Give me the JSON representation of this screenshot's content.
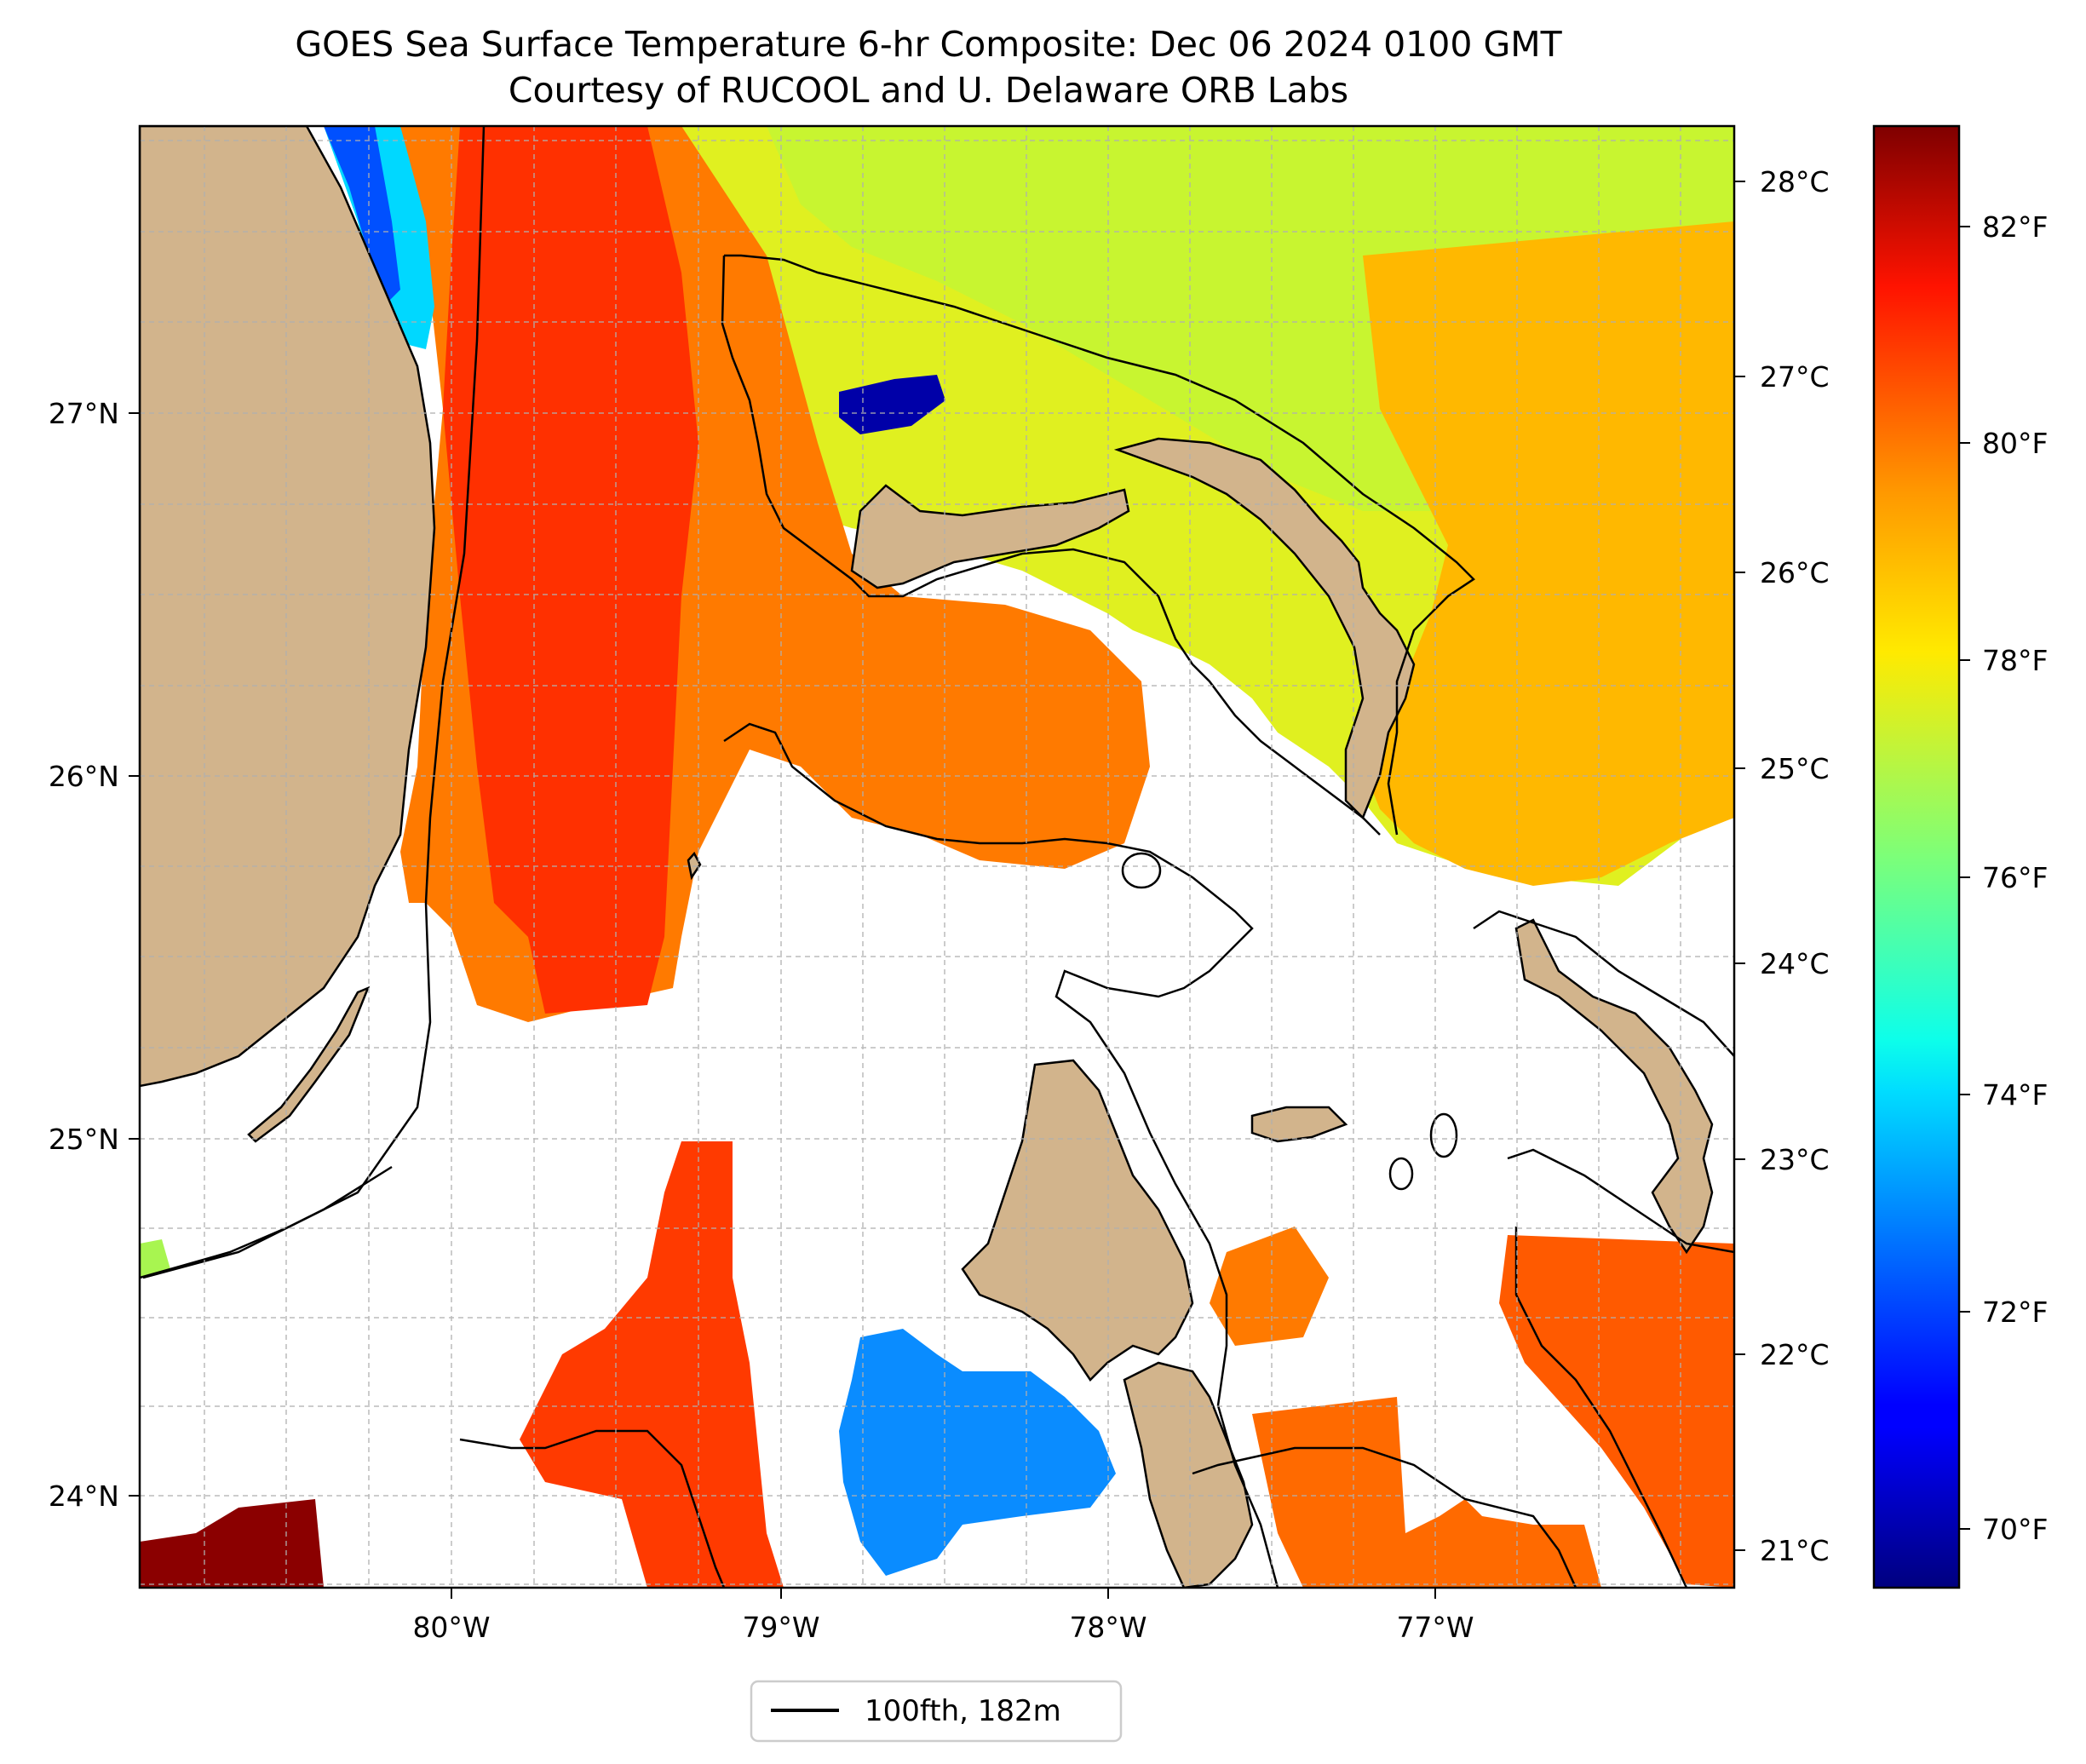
{
  "title": {
    "line1": "GOES Sea Surface Temperature 6-hr Composite: Dec 06 2024 0100 GMT",
    "line2": "Courtesy of RUCOOL and U. Delaware ORB Labs"
  },
  "map": {
    "lon_range": [
      -80.96,
      -76.1
    ],
    "lat_range": [
      23.75,
      27.8
    ],
    "x_ticks": [
      "80°W",
      "79°W",
      "78°W",
      "77°W"
    ],
    "y_ticks": [
      "27°N",
      "26°N",
      "25°N",
      "24°N"
    ],
    "gridlines": true,
    "land_color": "#d2b48c",
    "no_data_color": "#ffffff",
    "isobath_color": "#000000"
  },
  "colorbar": {
    "colormap": "jet",
    "celsius_ticks": [
      "28°C",
      "27°C",
      "26°C",
      "25°C",
      "24°C",
      "23°C",
      "22°C",
      "21°C"
    ],
    "fahrenheit_ticks": [
      "82°F",
      "80°F",
      "78°F",
      "76°F",
      "74°F",
      "72°F",
      "70°F"
    ],
    "fahrenheit_range": [
      69.3,
      83.3
    ]
  },
  "legend": {
    "label": "100fth, 182m",
    "location": "bottom-center"
  }
}
